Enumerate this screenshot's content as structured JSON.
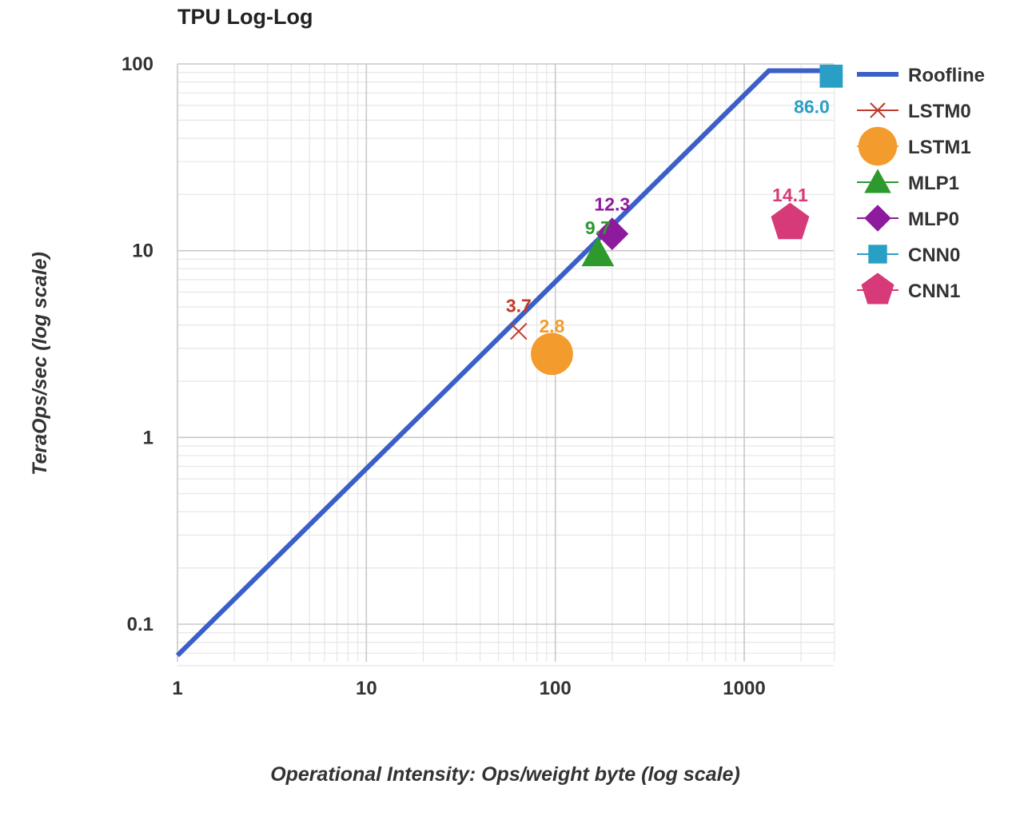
{
  "chart_data": {
    "type": "scatter",
    "title": "TPU Log-Log",
    "xlabel": "Operational Intensity: Ops/weight byte (log scale)",
    "ylabel": "TeraOps/sec (log scale)",
    "x_scale": "log",
    "y_scale": "log",
    "xlim": [
      1,
      3000
    ],
    "ylim": [
      0.05,
      100
    ],
    "x_ticks": [
      {
        "value": 1,
        "label": "1"
      },
      {
        "value": 10,
        "label": "10"
      },
      {
        "value": 100,
        "label": "100"
      },
      {
        "value": 1000,
        "label": "1000"
      }
    ],
    "y_ticks": [
      {
        "value": 0.1,
        "label": "0.1"
      },
      {
        "value": 1,
        "label": "1"
      },
      {
        "value": 10,
        "label": "10"
      },
      {
        "value": 100,
        "label": "100"
      }
    ],
    "grid": true,
    "legend_position": "right",
    "series": [
      {
        "name": "Roofline",
        "kind": "line",
        "color": "#3A5FC8",
        "x": [
          1,
          1350,
          2800
        ],
        "y": [
          0.068,
          92,
          92
        ]
      },
      {
        "name": "LSTM0",
        "kind": "point",
        "marker": "x",
        "color": "#C0392B",
        "x": [
          64
        ],
        "y": [
          3.7
        ],
        "label": "3.7"
      },
      {
        "name": "LSTM1",
        "kind": "point",
        "marker": "circle",
        "color": "#F39C2D",
        "x": [
          96
        ],
        "y": [
          2.8
        ],
        "label": "2.8"
      },
      {
        "name": "MLP1",
        "kind": "point",
        "marker": "triangle",
        "color": "#2E9A2E",
        "x": [
          168
        ],
        "y": [
          9.7
        ],
        "label": "9.7"
      },
      {
        "name": "MLP0",
        "kind": "point",
        "marker": "diamond",
        "color": "#8E1A9E",
        "x": [
          200
        ],
        "y": [
          12.3
        ],
        "label": "12.3"
      },
      {
        "name": "CNN0",
        "kind": "point",
        "marker": "square",
        "color": "#2A9FC6",
        "x": [
          2888
        ],
        "y": [
          86.0
        ],
        "label": "86.0"
      },
      {
        "name": "CNN1",
        "kind": "point",
        "marker": "pentagon",
        "color": "#D63A78",
        "x": [
          1750
        ],
        "y": [
          14.1
        ],
        "label": "14.1"
      }
    ]
  }
}
